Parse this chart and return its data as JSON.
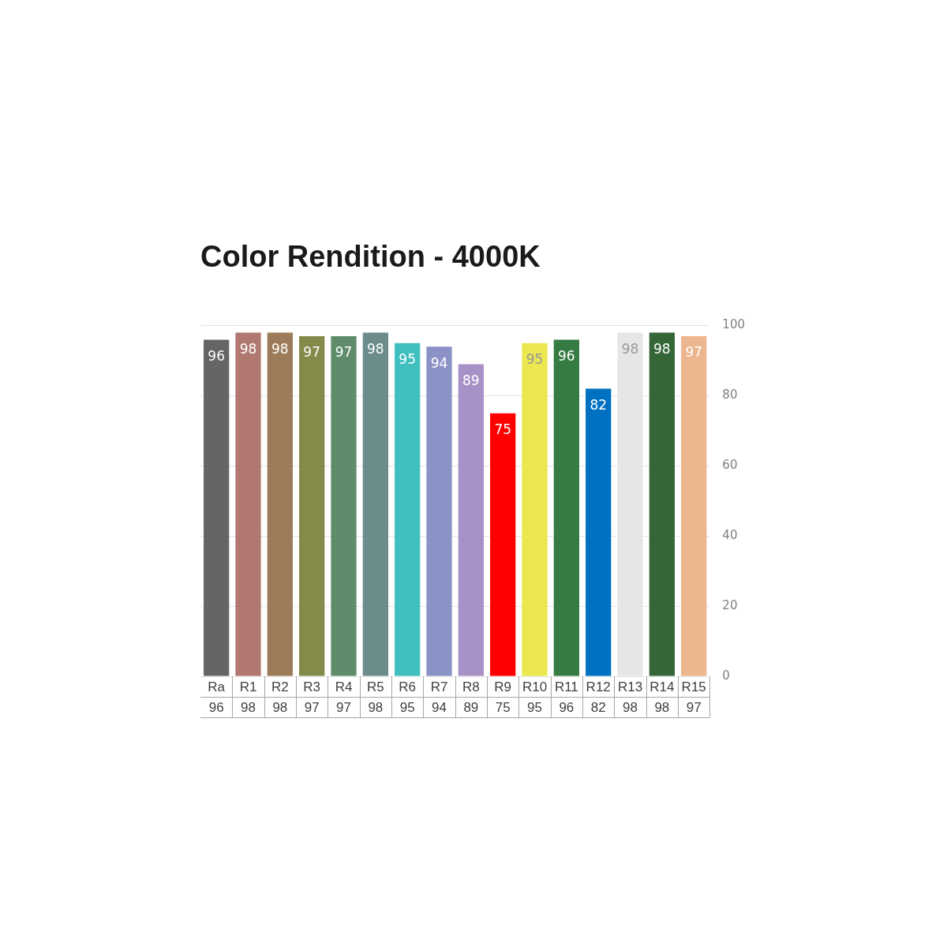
{
  "chart_data": {
    "type": "bar",
    "title": "Color Rendition - 4000K",
    "categories": [
      "Ra",
      "R1",
      "R2",
      "R3",
      "R4",
      "R5",
      "R6",
      "R7",
      "R8",
      "R9",
      "R10",
      "R11",
      "R12",
      "R13",
      "R14",
      "R15"
    ],
    "values": [
      96,
      98,
      98,
      97,
      97,
      98,
      95,
      94,
      89,
      75,
      95,
      96,
      82,
      98,
      98,
      97
    ],
    "colors": [
      "#666465",
      "#b07870",
      "#9c7c58",
      "#838a4a",
      "#5f8d6c",
      "#6b8c8b",
      "#40bfbf",
      "#8b92c6",
      "#a891c6",
      "#ff0000",
      "#ebe84f",
      "#357b42",
      "#0070c0",
      "#e6e6e8",
      "#356638",
      "#ecb68e"
    ],
    "value_labels": [
      "96",
      "98",
      "98",
      "97",
      "97",
      "98",
      "95",
      "94",
      "89",
      "75",
      "95",
      "96",
      "82",
      "98",
      "98",
      "97"
    ],
    "annotations": [
      "96",
      "98",
      "98",
      "97",
      "97",
      "98",
      "95",
      "94",
      "89",
      "75",
      "95",
      "96",
      "82",
      "98",
      "98",
      "97"
    ],
    "ylim": [
      0,
      100
    ],
    "yticks": [
      0,
      20,
      40,
      60,
      80,
      100
    ],
    "grid": "y"
  }
}
